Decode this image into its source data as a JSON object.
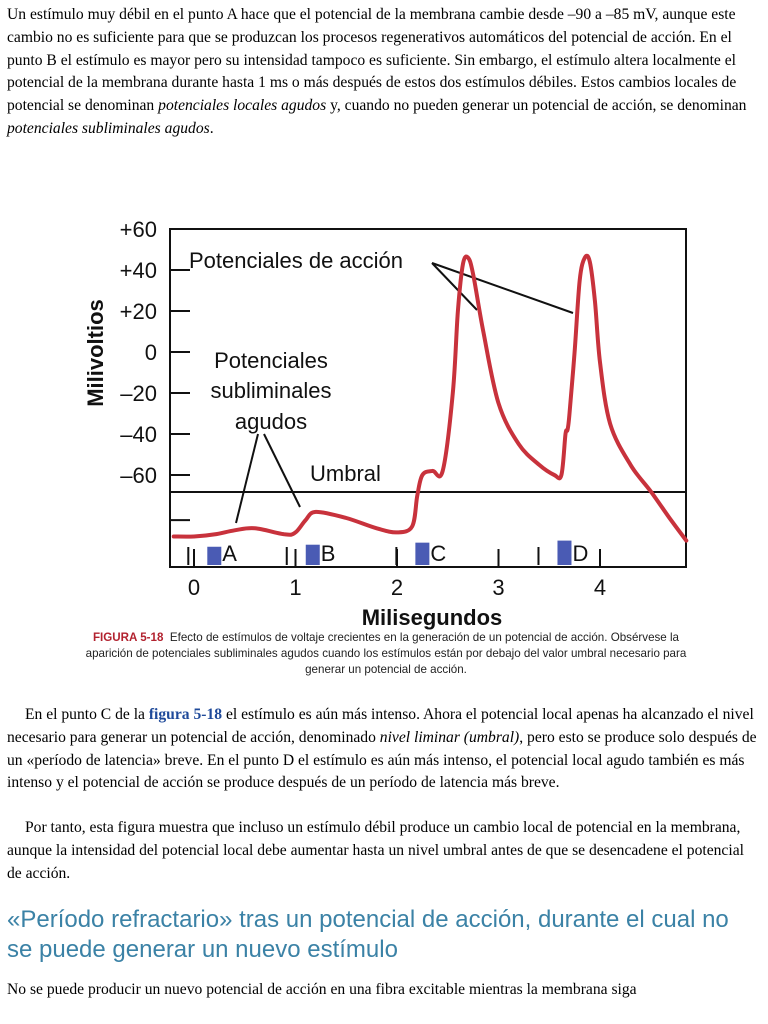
{
  "para1": {
    "before": "Un estímulo muy débil en el punto A hace que el potencial de la membrana cambie desde –90 a –85 mV, aunque este cambio no es suficiente para que se produzcan los procesos regenerativos automáticos del potencial de acción. En el punto B el estímulo es mayor pero su intensidad tampoco es suficiente. Sin embargo, el estímulo altera localmente el potencial de la membrana durante hasta 1 ms o más después de estos dos estímulos débiles. Estos cambios locales de potencial se denominan ",
    "em1": "potenciales locales agudos",
    "middle": " y, cuando no pueden generar un potencial de acción, se denominan ",
    "em2": "potenciales subliminales agudos",
    "after": "."
  },
  "figure": {
    "ylabel": "Milivoltios",
    "xlabel": "Milisegundos",
    "yticks": [
      "+60",
      "+40",
      "+20",
      "0",
      "–20",
      "–40",
      "–60"
    ],
    "xticks": [
      "0",
      "1",
      "2",
      "3",
      "4"
    ],
    "label_action": "Potenciales de acción",
    "label_sub": [
      "Potenciales",
      "subliminales",
      "agudos"
    ],
    "label_umbral": "Umbral",
    "stimuli": [
      "A",
      "B",
      "C",
      "D"
    ],
    "colors": {
      "trace": "#c8323c",
      "stimulus": "#4a5bb4"
    }
  },
  "chart_data": {
    "type": "line",
    "title": "",
    "xlabel": "Milisegundos",
    "ylabel": "Milivoltios",
    "xlim": [
      -0.2,
      4.9
    ],
    "ylim": [
      -100,
      60
    ],
    "threshold": {
      "label": "Umbral",
      "y": -68
    },
    "series": [
      {
        "x": [
          -0.2,
          0.0,
          0.2,
          0.4,
          0.6,
          0.9,
          1.0,
          1.1,
          1.2,
          1.5,
          1.8,
          2.0,
          2.15,
          2.2,
          2.25,
          2.35,
          2.45,
          2.55,
          2.6,
          2.65,
          2.7,
          2.75,
          2.85,
          3.0,
          3.2,
          3.4,
          3.55,
          3.62,
          3.66,
          3.68,
          3.7,
          3.75,
          3.8,
          3.85,
          3.9,
          3.95,
          4.0,
          4.1,
          4.3,
          4.5,
          4.7,
          4.85
        ],
        "y": [
          -90,
          -90,
          -89,
          -87,
          -86,
          -89,
          -88,
          -82,
          -78,
          -81,
          -86,
          -88,
          -85,
          -70,
          -60,
          -58,
          -58,
          -20,
          20,
          43,
          46,
          38,
          10,
          -25,
          -45,
          -55,
          -60,
          -60,
          -40,
          -38,
          -30,
          0,
          35,
          46,
          44,
          25,
          -5,
          -35,
          -55,
          -68,
          -82,
          -92
        ]
      }
    ],
    "stimuli": [
      {
        "label": "A",
        "x": 0.2,
        "y": -95
      },
      {
        "label": "B",
        "x": 1.17,
        "y": -94
      },
      {
        "label": "C",
        "x": 2.25,
        "y": -93
      },
      {
        "label": "D",
        "x": 3.65,
        "y": -92
      }
    ]
  },
  "caption": {
    "label": "FIGURA 5-18",
    "text": "Efecto de estímulos de voltaje crecientes en la generación de un potencial de acción. Obsérvese la aparición de potenciales subliminales agudos cuando los estímulos están por debajo del valor umbral necesario para generar un potencial de acción."
  },
  "para2": {
    "before": "En el punto C de la ",
    "link": "figura 5-18",
    "middle": " el estímulo es aún más intenso. Ahora el potencial local apenas ha alcanzado el nivel necesario para generar un potencial de acción, denominado ",
    "em": "nivel liminar (umbral)",
    "after": ", pero esto se produce solo después de un «período de latencia» breve. En el punto D el estímulo es aún más intenso, el potencial local agudo también es más intenso y el potencial de acción se produce después de un período de latencia más breve."
  },
  "para3": "Por tanto, esta figura muestra que incluso un estímulo débil produce un cambio local de potencial en la membrana, aunque la intensidad del potencial local debe aumentar hasta un nivel umbral antes de que se desencadene el potencial de acción.",
  "heading": "«Período refractario» tras un potencial de acción, durante el cual no se puede generar un nuevo estímulo",
  "para4": "No se puede producir un nuevo potencial de acción en una fibra excitable mientras la membrana siga"
}
